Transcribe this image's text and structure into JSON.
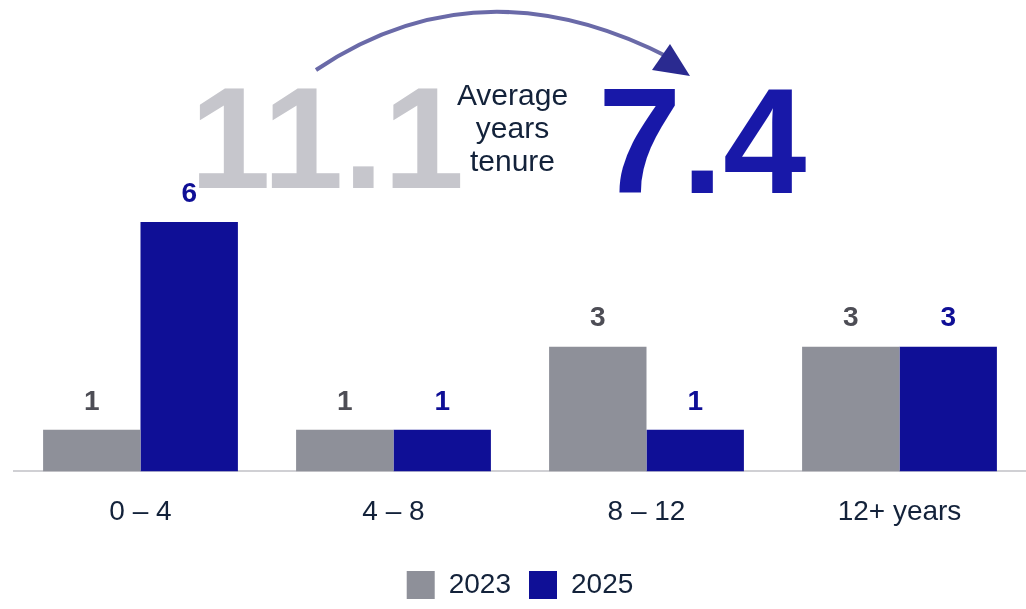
{
  "chart_data": {
    "type": "bar",
    "categories": [
      "0 – 4",
      "4 – 8",
      "8 – 12",
      "12+ years"
    ],
    "series": [
      {
        "name": "2023",
        "color": "#8e9099",
        "values": [
          1,
          1,
          3,
          3
        ]
      },
      {
        "name": "2025",
        "color": "#0f0f96",
        "values": [
          6,
          1,
          1,
          3
        ]
      }
    ],
    "data_labels": true,
    "grid": false,
    "legend": "bottom",
    "tick_labels": "x",
    "annotations": [
      "11.1",
      "Average years tenure",
      "7.4"
    ]
  }
}
